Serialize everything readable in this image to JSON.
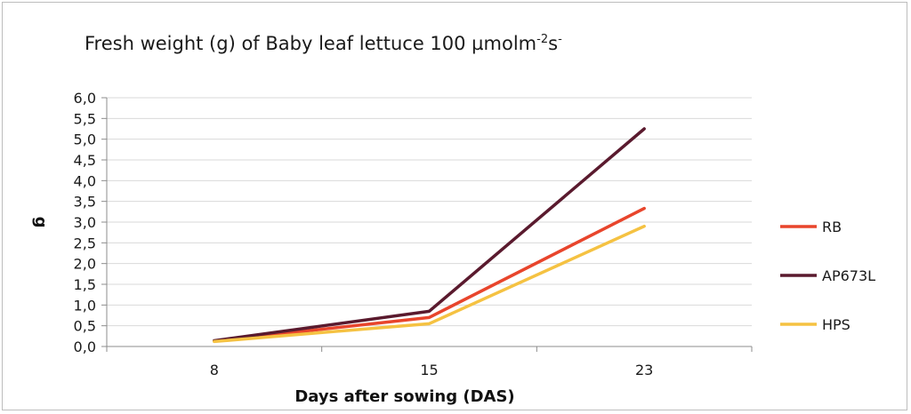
{
  "chart_data": {
    "type": "line",
    "title_main": "Fresh weight (g) of Baby leaf lettuce 100 µmolm",
    "title_sup1": "-2",
    "title_mid": "s",
    "title_sup2": "-",
    "xlabel": "Days after sowing (DAS)",
    "ylabel": "g",
    "categories": [
      "8",
      "15",
      "23"
    ],
    "ylim": [
      0,
      6
    ],
    "ytick_step": 0.5,
    "yticks": [
      "0,0",
      "0,5",
      "1,0",
      "1,5",
      "2,0",
      "2,5",
      "3,0",
      "3,5",
      "4,0",
      "4,5",
      "5,0",
      "5,5",
      "6,0"
    ],
    "grid": true,
    "legend_position": "right",
    "series": [
      {
        "name": "RB",
        "color": "#e8452c",
        "values": [
          0.13,
          0.7,
          3.33
        ]
      },
      {
        "name": "AP673L",
        "color": "#5a1a2e",
        "values": [
          0.14,
          0.85,
          5.25
        ]
      },
      {
        "name": "HPS",
        "color": "#f5c242",
        "values": [
          0.12,
          0.55,
          2.9
        ]
      }
    ]
  }
}
